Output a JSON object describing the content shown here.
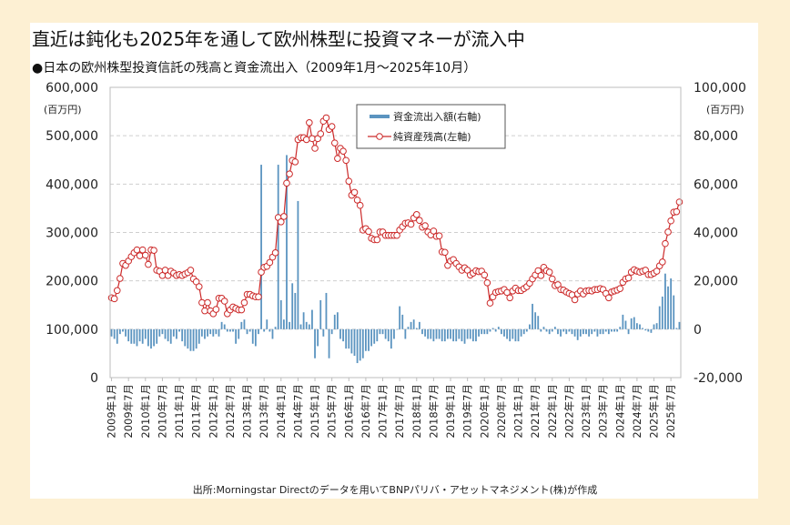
{
  "title": "直近は鈍化も2025年を通して欧州株型に投資マネーが流入中",
  "subtitle": "●日本の欧州株型投資信託の残高と資金流出入（2009年1月～2025年10月）",
  "source": "出所:Morningstar Directのデータを用いてBNPパリバ・アセットマネジメント(株)が作成",
  "chart_data": {
    "type": "bar+line",
    "left_axis": {
      "unit": "(百万円)",
      "ylim": [
        0,
        600000
      ],
      "ticks": [
        "600,000",
        "500,000",
        "400,000",
        "300,000",
        "200,000",
        "100,000",
        "0"
      ],
      "tick_values": [
        600000,
        500000,
        400000,
        300000,
        200000,
        100000,
        0
      ]
    },
    "right_axis": {
      "unit": "(百万円)",
      "ylim": [
        -20000,
        100000
      ],
      "ticks": [
        "100,000",
        "80,000",
        "60,000",
        "40,000",
        "20,000",
        "0",
        "-20,000"
      ],
      "tick_values": [
        100000,
        80000,
        60000,
        40000,
        20000,
        0,
        -20000
      ],
      "negative_tick_color": "#e02020"
    },
    "grid": true,
    "legend_position": "top-center",
    "x_start": "2009-01",
    "x_end": "2025-10",
    "x_tick_labels": [
      "2009年1月",
      "2009年7月",
      "2010年1月",
      "2010年7月",
      "2011年1月",
      "2011年7月",
      "2012年1月",
      "2012年7月",
      "2013年1月",
      "2013年7月",
      "2014年1月",
      "2014年7月",
      "2015年1月",
      "2015年7月",
      "2016年1月",
      "2016年7月",
      "2017年1月",
      "2017年7月",
      "2018年1月",
      "2018年7月",
      "2019年1月",
      "2019年7月",
      "2020年1月",
      "2020年7月",
      "2021年1月",
      "2021年7月",
      "2022年1月",
      "2022年7月",
      "2023年1月",
      "2023年7月",
      "2024年1月",
      "2024年7月",
      "2025年1月",
      "2025年7月"
    ],
    "series": [
      {
        "name": "資金流出入額(右軸)",
        "type": "bar",
        "axis": "right",
        "color": "#5b94c0",
        "values": [
          -3000,
          -4000,
          -6000,
          -2000,
          -1000,
          -3000,
          -5000,
          -6000,
          -6000,
          -7000,
          -5000,
          -6000,
          -4000,
          -7000,
          -8000,
          -7000,
          -6000,
          -3000,
          -2000,
          -4000,
          -5000,
          -6000,
          -3000,
          -4000,
          -1000,
          -5000,
          -7000,
          -8000,
          -9000,
          -9000,
          -8000,
          -6000,
          -3000,
          -4000,
          -3000,
          -2000,
          -3000,
          -2000,
          -3000,
          3000,
          2000,
          -1000,
          -1000,
          -1000,
          -6000,
          -4000,
          3000,
          4000,
          -2000,
          -1000,
          -6000,
          -7000,
          -2000,
          68000,
          -1000,
          4000,
          -1000,
          -4000,
          1000,
          68000,
          12000,
          4000,
          72000,
          3000,
          19000,
          15000,
          53000,
          2000,
          7000,
          3000,
          2000,
          8000,
          -12000,
          -7000,
          12000,
          -3000,
          15000,
          -12000,
          -2000,
          6000,
          7000,
          -4000,
          -5000,
          -8000,
          -8000,
          -10000,
          -11000,
          -14000,
          -13000,
          -12000,
          -9000,
          -9000,
          -7000,
          -6000,
          -5000,
          -2000,
          -2000,
          -4000,
          -5000,
          -8000,
          -4000,
          0,
          9500,
          6000,
          -4000,
          1000,
          3000,
          4000,
          500,
          3000,
          -2000,
          -3000,
          -4000,
          -4000,
          -5000,
          -4000,
          -4000,
          -5000,
          -5000,
          -4000,
          -4000,
          -5000,
          -5000,
          -4000,
          -5000,
          -6000,
          -4000,
          -4000,
          -5000,
          -5000,
          -3000,
          -2000,
          -2000,
          -2000,
          -1000,
          500,
          -1000,
          1000,
          -2000,
          -3000,
          -4000,
          -5000,
          -4000,
          -5000,
          -5000,
          -3000,
          -2000,
          -1000,
          2000,
          10500,
          7000,
          5500,
          -1000,
          1000,
          -1000,
          -2000,
          -1000,
          1000,
          -2000,
          -3000,
          -1000,
          -2000,
          -1000,
          -2000,
          -3000,
          -4500,
          -3000,
          -2000,
          -2000,
          -3000,
          -2000,
          -1000,
          -3000,
          -2000,
          -2000,
          -1000,
          -2000,
          -1000,
          -1000,
          -1000,
          1000,
          6000,
          3500,
          -2000,
          4500,
          5000,
          2500,
          2000,
          500,
          -500,
          -1000,
          -1500,
          2000,
          2500,
          9500,
          13500,
          23000,
          17700,
          21000,
          14000,
          500,
          3000
        ]
      },
      {
        "name": "純資産残高(左軸)",
        "type": "line",
        "axis": "left",
        "color": "#cc2a2a",
        "values": [
          165000,
          163000,
          180000,
          205000,
          236000,
          232000,
          241000,
          250000,
          258000,
          264000,
          252000,
          264000,
          253000,
          234000,
          264000,
          263000,
          222000,
          220000,
          211000,
          222000,
          211000,
          220000,
          216000,
          211000,
          213000,
          211000,
          214000,
          217000,
          222000,
          204000,
          198000,
          188000,
          155000,
          138000,
          155000,
          138000,
          132000,
          141000,
          164000,
          164000,
          158000,
          132000,
          140000,
          146000,
          143000,
          140000,
          140000,
          155000,
          172000,
          172000,
          169000,
          167000,
          167000,
          218000,
          228000,
          230000,
          238000,
          249000,
          258000,
          331000,
          322000,
          333000,
          402000,
          421000,
          449000,
          446000,
          492000,
          496000,
          496000,
          492000,
          527000,
          494000,
          474000,
          494000,
          504000,
          530000,
          537000,
          513000,
          519000,
          485000,
          453000,
          474000,
          468000,
          449000,
          406000,
          377000,
          383000,
          367000,
          356000,
          305000,
          308000,
          302000,
          288000,
          285000,
          285000,
          301000,
          301000,
          294000,
          294000,
          294000,
          294000,
          294000,
          305000,
          312000,
          319000,
          320000,
          317000,
          330000,
          337000,
          325000,
          311000,
          314000,
          301000,
          295000,
          303000,
          292000,
          293000,
          260000,
          259000,
          232000,
          241000,
          244000,
          236000,
          229000,
          222000,
          227000,
          222000,
          212000,
          216000,
          221000,
          219000,
          220000,
          212000,
          196000,
          154000,
          167000,
          176000,
          178000,
          179000,
          182000,
          176000,
          165000,
          179000,
          185000,
          180000,
          180000,
          184000,
          188000,
          195000,
          204000,
          212000,
          221000,
          211000,
          228000,
          221000,
          218000,
          204000,
          190000,
          192000,
          182000,
          181000,
          177000,
          174000,
          171000,
          161000,
          173000,
          179000,
          173000,
          179000,
          180000,
          179000,
          182000,
          182000,
          184000,
          182000,
          174000,
          165000,
          177000,
          179000,
          181000,
          184000,
          197000,
          204000,
          206000,
          218000,
          223000,
          220000,
          218000,
          220000,
          222000,
          213000,
          213000,
          216000,
          220000,
          231000,
          239000,
          277000,
          301000,
          324000,
          342000,
          343000,
          363000
        ]
      }
    ]
  }
}
